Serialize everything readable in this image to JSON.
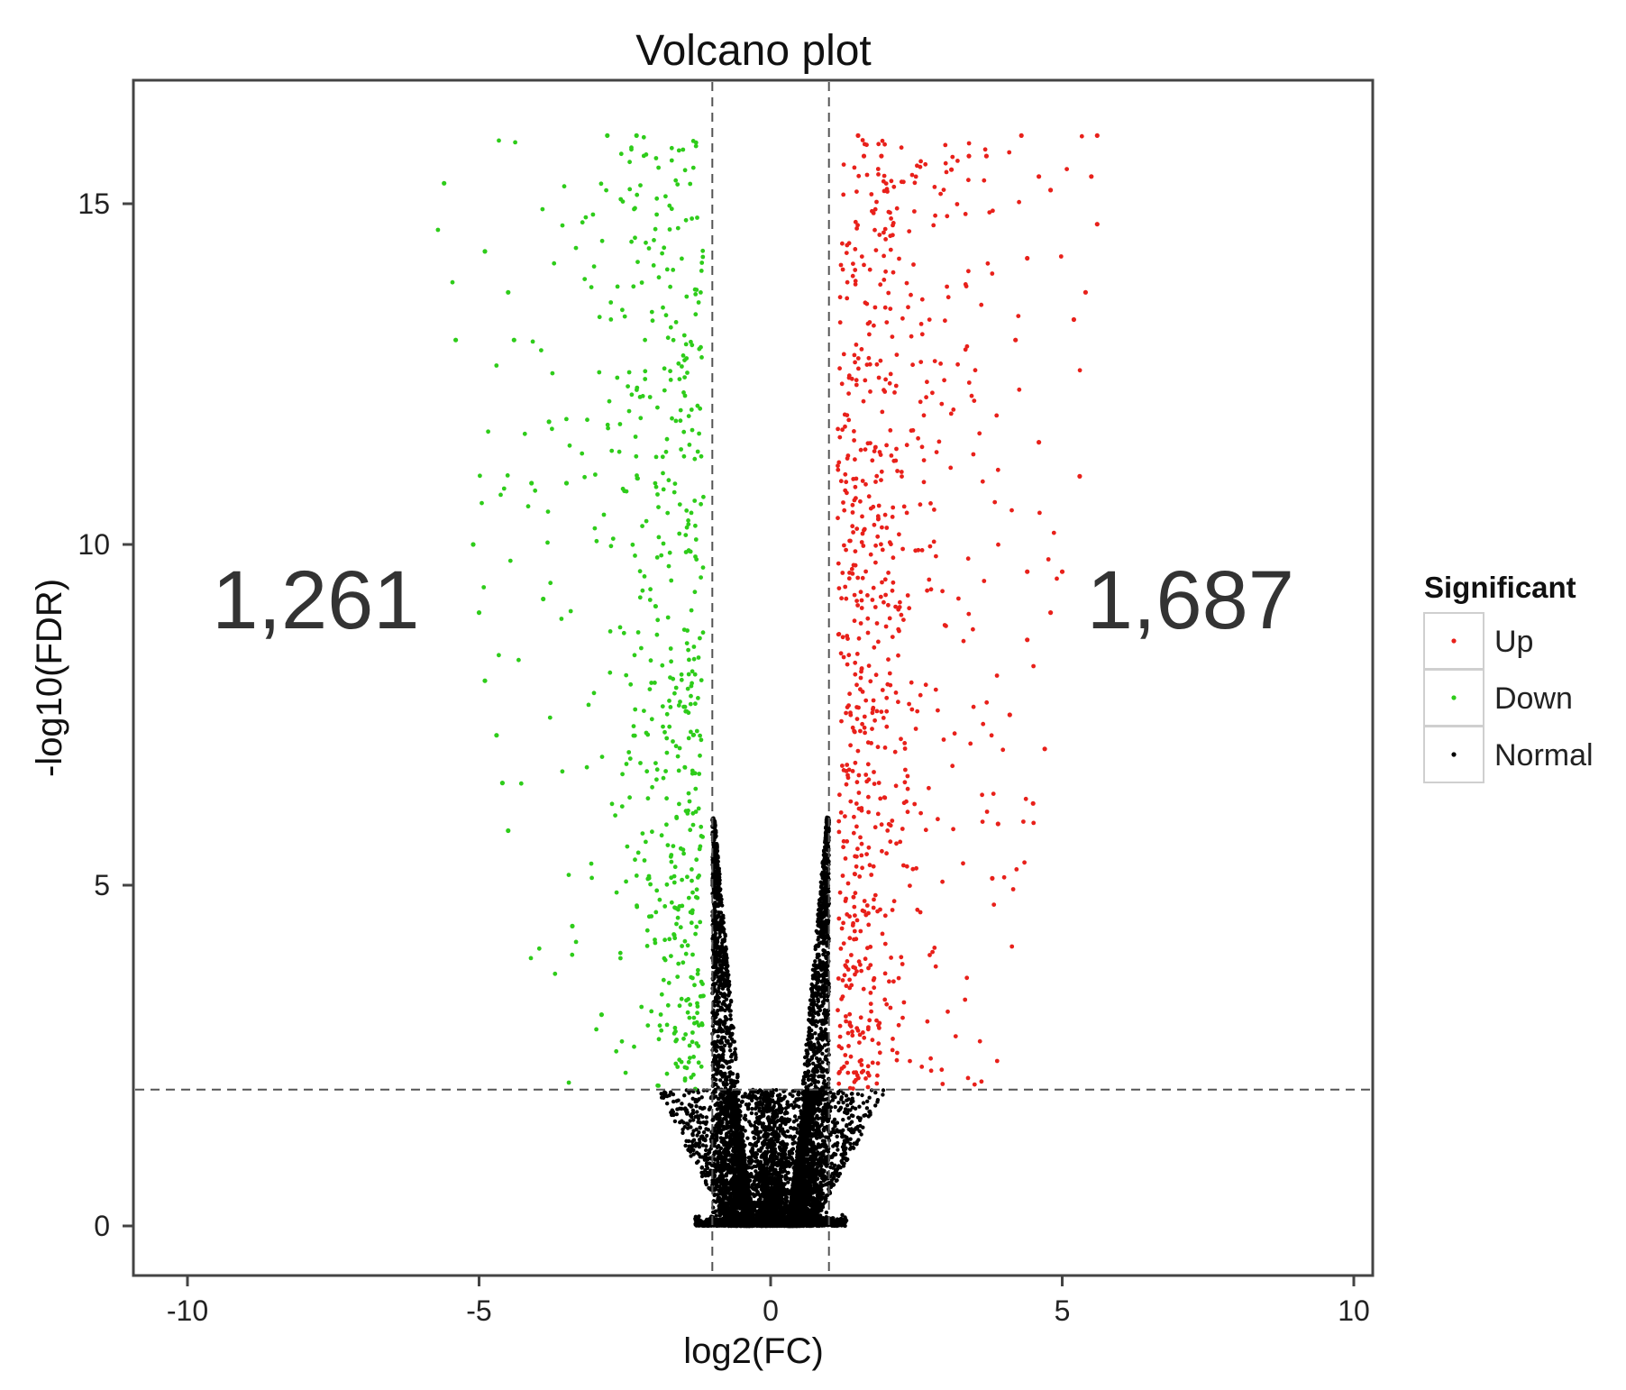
{
  "chart_data": {
    "type": "scatter",
    "title": "Volcano plot",
    "xlabel": "log2(FC)",
    "ylabel": "-log10(FDR)",
    "xlim": [
      -11,
      10.3
    ],
    "ylim": [
      -0.75,
      16.5
    ],
    "x_ticks": [
      "-10",
      "-5",
      "0",
      "5",
      "10"
    ],
    "y_ticks": [
      "0",
      "5",
      "10",
      "15"
    ],
    "thresholds": {
      "log2fc": [
        -1,
        1
      ],
      "neg_log10_fdr": 2
    },
    "grid": false,
    "legend": {
      "title": "Significant",
      "placement": "right",
      "entries": [
        {
          "label": "Up",
          "color": "#e8201a"
        },
        {
          "label": "Down",
          "color": "#2ecc1a"
        },
        {
          "label": "Normal",
          "color": "#000000"
        }
      ]
    },
    "annotations": [
      {
        "text": "1,261",
        "x": -7.8,
        "y": 9.3
      },
      {
        "text": "1,687",
        "x": 7.2,
        "y": 9.3
      }
    ],
    "series": [
      {
        "name": "Up",
        "color": "#e8201a",
        "count": 1687
      },
      {
        "name": "Down",
        "color": "#2ecc1a",
        "count": 1261
      },
      {
        "name": "Normal",
        "color": "#000000"
      }
    ],
    "highlight_points": {
      "Up": [
        [
          1.5,
          16.0
        ],
        [
          1.6,
          15.7
        ],
        [
          1.9,
          15.7
        ],
        [
          3.4,
          15.7
        ],
        [
          3.7,
          15.7
        ],
        [
          4.3,
          16.0
        ],
        [
          5.6,
          16.0
        ],
        [
          3.1,
          15.5
        ],
        [
          4.6,
          15.4
        ],
        [
          5.5,
          15.4
        ],
        [
          4.8,
          15.2
        ],
        [
          5.6,
          14.7
        ],
        [
          4.4,
          14.2
        ],
        [
          5.4,
          13.7
        ],
        [
          5.2,
          13.3
        ],
        [
          4.2,
          13.0
        ],
        [
          4.6,
          11.5
        ],
        [
          5.3,
          11.0
        ],
        [
          4.4,
          9.6
        ],
        [
          5.0,
          9.6
        ],
        [
          4.8,
          9.0
        ],
        [
          4.4,
          8.6
        ],
        [
          4.1,
          7.5
        ],
        [
          4.7,
          7.0
        ],
        [
          4.5,
          6.2
        ],
        [
          3.9,
          5.9
        ],
        [
          3.8,
          5.1
        ]
      ],
      "Down": [
        [
          -2.8,
          16.0
        ],
        [
          -2.3,
          16.0
        ],
        [
          -5.6,
          15.3
        ],
        [
          -4.9,
          14.3
        ],
        [
          -4.5,
          13.7
        ],
        [
          -5.4,
          13.0
        ],
        [
          -4.4,
          13.0
        ],
        [
          -3.8,
          11.8
        ],
        [
          -4.1,
          10.9
        ],
        [
          -3.5,
          10.9
        ],
        [
          -5.1,
          10.0
        ],
        [
          -3.9,
          9.2
        ],
        [
          -5.0,
          9.0
        ],
        [
          -4.9,
          8.0
        ],
        [
          -4.7,
          7.2
        ],
        [
          -4.6,
          6.5
        ],
        [
          -4.5,
          5.8
        ],
        [
          -3.4,
          4.4
        ],
        [
          -2.9,
          3.1
        ]
      ]
    }
  }
}
